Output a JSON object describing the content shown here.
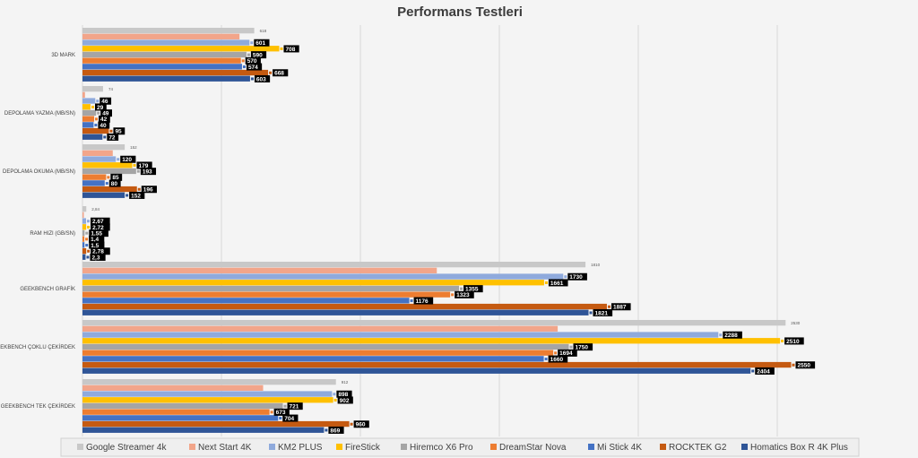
{
  "chart_data": {
    "type": "bar",
    "orientation": "horizontal",
    "title": "Performans Testleri",
    "categories": [
      "3D MARK",
      "DEPOLAMA YAZMA (MB/SN)",
      "DEPOLAMA OKUMA (MB/SN)",
      "RAM HIZI (GB/SN)",
      "GEEKBENCH GRAFİK",
      "GEEKBENCH ÇOKLU ÇEKİRDEK",
      "GEEKBENCH TEK ÇEKİRDEK"
    ],
    "series": [
      {
        "name": "Google Streamer 4k",
        "color": "#c8c8c8",
        "labeled": false,
        "values": [
          618,
          74,
          152,
          2.84,
          1810,
          2530,
          912
        ],
        "label_texts": [
          "618",
          "74",
          "152",
          "2,84",
          "1810",
          "2530",
          "912"
        ]
      },
      {
        "name": "Next Start 4K",
        "color": "#f2a58a",
        "labeled": false,
        "values": [
          565,
          9,
          109,
          0.5,
          1275,
          1710,
          650
        ]
      },
      {
        "name": "KM2 PLUS",
        "color": "#8faadc",
        "labeled": true,
        "values": [
          601,
          46,
          120,
          2.67,
          1730,
          2288,
          898
        ],
        "label_texts": [
          "601",
          "46",
          "120",
          "2,67",
          "1730",
          "2288",
          "898"
        ]
      },
      {
        "name": "FireStick",
        "color": "#ffc000",
        "labeled": true,
        "values": [
          708,
          29,
          179,
          2.72,
          1661,
          2510,
          902
        ],
        "label_texts": [
          "708",
          "29",
          "179",
          "2,72",
          "1661",
          "2510",
          "902"
        ]
      },
      {
        "name": "Hiremco X6 Pro",
        "color": "#a5a5a5",
        "labeled": true,
        "values": [
          590,
          49,
          193,
          1.55,
          1355,
          1750,
          721
        ],
        "label_texts": [
          "590",
          "49",
          "193",
          "1,55",
          "1355",
          "1750",
          "721"
        ]
      },
      {
        "name": "DreamStar Nova",
        "color": "#ed7d31",
        "labeled": true,
        "values": [
          570,
          42,
          85,
          1.4,
          1323,
          1694,
          673
        ],
        "label_texts": [
          "570",
          "42",
          "85",
          "1,4",
          "1323",
          "1694",
          "673"
        ]
      },
      {
        "name": "Mi Stick 4K",
        "color": "#4472c4",
        "labeled": true,
        "values": [
          574,
          40,
          80,
          1.5,
          1176,
          1660,
          704
        ],
        "label_texts": [
          "574",
          "40",
          "80",
          "1,5",
          "1176",
          "1660",
          "704"
        ]
      },
      {
        "name": "ROCKTEK G2",
        "color": "#c55a11",
        "labeled": true,
        "values": [
          668,
          95,
          196,
          2.78,
          1887,
          2550,
          960
        ],
        "label_texts": [
          "668",
          "95",
          "196",
          "2,78",
          "1887",
          "2550",
          "960"
        ]
      },
      {
        "name": "Homatics Box R 4K Plus",
        "color": "#2f5597",
        "labeled": true,
        "values": [
          603,
          72,
          152,
          2.3,
          1821,
          2404,
          869
        ],
        "label_texts": [
          "603",
          "72",
          "152",
          "2,3",
          "1821",
          "2404",
          "869"
        ]
      }
    ],
    "xlim": [
      0,
      3000
    ],
    "gridlines_x": [
      500,
      1000,
      1500,
      2000,
      2500
    ],
    "legend": "bottom"
  }
}
